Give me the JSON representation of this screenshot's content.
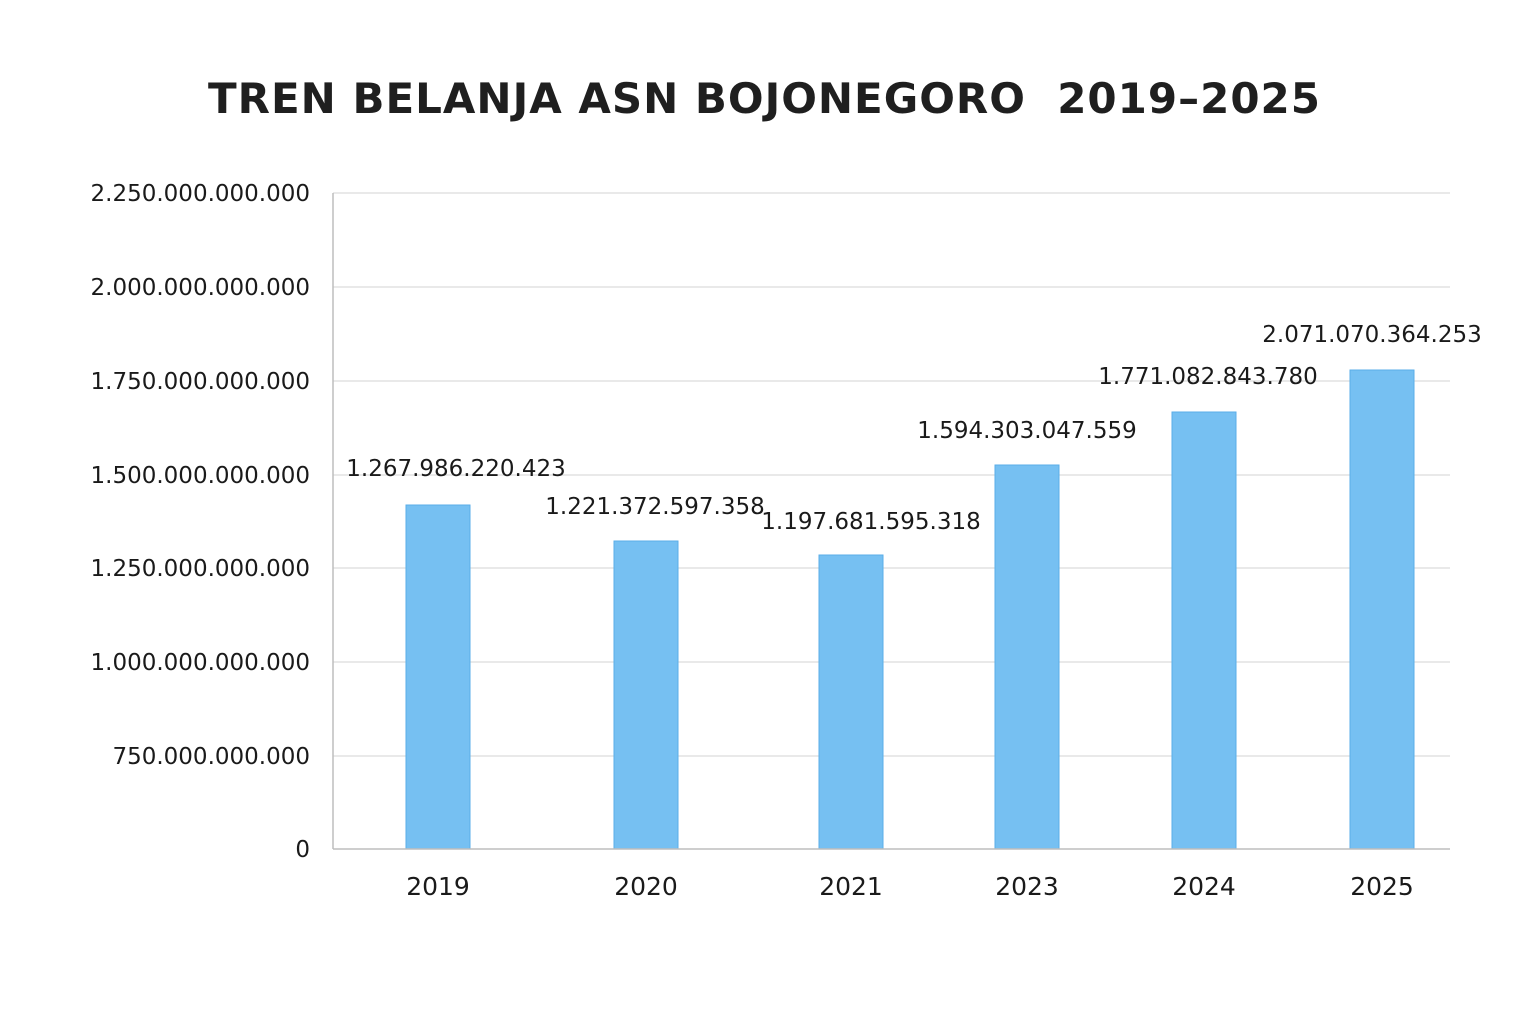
{
  "chart_data": {
    "type": "bar",
    "title": "TREN BELANJA ASN BOJONEGORO  2019–2025",
    "xlabel": "",
    "ylabel": "",
    "categories": [
      "2019",
      "2020",
      "2021",
      "2023",
      "2024",
      "2025"
    ],
    "values": [
      1267986220423,
      1221372597358,
      1197681595318,
      1594303047559,
      1771082843780,
      2071070364253
    ],
    "value_labels": [
      "1.267.986.220.423",
      "1.221.372.597.358",
      "1.197.681.595.318",
      "1.594.303.047.559",
      "1.771.082.843.780",
      "2.071.070.364.253"
    ],
    "y_ticks": [
      0,
      750000000000,
      1000000000000,
      1250000000000,
      1500000000000,
      1750000000000,
      2000000000000,
      2250000000000
    ],
    "y_tick_labels": [
      "0",
      "750.000.000.000",
      "1.000.000.000.000",
      "1.250.000.000.000",
      "1.500.000.000.000",
      "1.750.000.000.000",
      "2.000.000.000.000",
      "2.250.000.000.000"
    ],
    "ylim": [
      0,
      2250000000000
    ],
    "grid": true,
    "legend": "none",
    "bar_color": "#76c0f2",
    "bar_edge_color": "#5aaee8",
    "grid_color": "#e2e2e2",
    "axis_color": "#bdbdbd"
  }
}
